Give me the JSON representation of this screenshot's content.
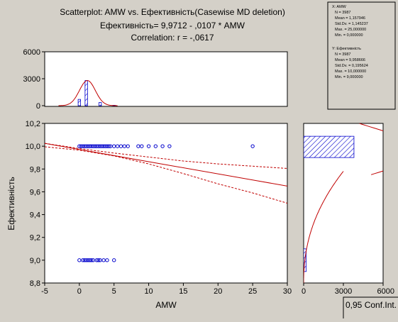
{
  "header": {
    "title": "Scatterplot: AMW     vs.   Ефективність(Casewise MD deletion)",
    "equation": "Ефективність= 9,9712 - ,0107  * AMW",
    "correlation": "Correlation: r = -,0617"
  },
  "stats_box": {
    "x_block": [
      "X:  AMW",
      "N  =  3987",
      "Mean  =  1,157946",
      "Std.Dv.  =  1,145237",
      "Max.  =  25,000000",
      "Min.  =  0,000000"
    ],
    "y_block": [
      "Y:  Ефективність",
      "N  =  3987",
      "Mean  =  9,958666",
      "Std.Dv.  =  0,195624",
      "Max.  =  10,000000",
      "Min.  =  9,000000"
    ]
  },
  "conf_label": "0,95 Conf.Int.",
  "colors": {
    "background": "#d4d0c8",
    "plot_bg": "#ffffff",
    "accent": "#c00000",
    "points": "#0000cc"
  },
  "chart_data": [
    {
      "type": "scatter",
      "name": "main",
      "xlabel": "AMW",
      "ylabel": "Ефективність",
      "xlim": [
        -5,
        30
      ],
      "ylim": [
        8.8,
        10.2
      ],
      "xticks": [
        "-5",
        "0",
        "5",
        "10",
        "15",
        "20",
        "25",
        "30"
      ],
      "yticks": [
        "8,8",
        "9,0",
        "9,2",
        "9,4",
        "9,6",
        "9,8",
        "10,0",
        "10,2"
      ],
      "points": [
        {
          "x": 0,
          "y": 10
        },
        {
          "x": 0.25,
          "y": 10
        },
        {
          "x": 0.5,
          "y": 10
        },
        {
          "x": 0.75,
          "y": 10
        },
        {
          "x": 1,
          "y": 10
        },
        {
          "x": 1.25,
          "y": 10
        },
        {
          "x": 1.5,
          "y": 10
        },
        {
          "x": 1.75,
          "y": 10
        },
        {
          "x": 2,
          "y": 10
        },
        {
          "x": 2.25,
          "y": 10
        },
        {
          "x": 2.5,
          "y": 10
        },
        {
          "x": 2.75,
          "y": 10
        },
        {
          "x": 3,
          "y": 10
        },
        {
          "x": 3.25,
          "y": 10
        },
        {
          "x": 3.5,
          "y": 10
        },
        {
          "x": 3.75,
          "y": 10
        },
        {
          "x": 4,
          "y": 10
        },
        {
          "x": 4.25,
          "y": 10
        },
        {
          "x": 4.5,
          "y": 10
        },
        {
          "x": 5,
          "y": 10
        },
        {
          "x": 5.5,
          "y": 10
        },
        {
          "x": 6,
          "y": 10
        },
        {
          "x": 6.5,
          "y": 10
        },
        {
          "x": 7,
          "y": 10
        },
        {
          "x": 8.5,
          "y": 10
        },
        {
          "x": 9,
          "y": 10
        },
        {
          "x": 10,
          "y": 10
        },
        {
          "x": 11,
          "y": 10
        },
        {
          "x": 12,
          "y": 10
        },
        {
          "x": 13,
          "y": 10
        },
        {
          "x": 25,
          "y": 10
        },
        {
          "x": 0,
          "y": 9
        },
        {
          "x": 0.5,
          "y": 9
        },
        {
          "x": 0.75,
          "y": 9
        },
        {
          "x": 1,
          "y": 9
        },
        {
          "x": 1.25,
          "y": 9
        },
        {
          "x": 1.5,
          "y": 9
        },
        {
          "x": 1.75,
          "y": 9
        },
        {
          "x": 2,
          "y": 9
        },
        {
          "x": 2.5,
          "y": 9
        },
        {
          "x": 2.75,
          "y": 9
        },
        {
          "x": 3,
          "y": 9
        },
        {
          "x": 3.5,
          "y": 9
        },
        {
          "x": 4,
          "y": 9
        },
        {
          "x": 5,
          "y": 9
        }
      ],
      "regression": {
        "intercept": 9.9712,
        "slope": -0.0107
      },
      "conf_band_lines": {
        "upper": [
          [
            -5,
            10.025
          ],
          [
            0,
            9.98
          ],
          [
            5,
            9.94
          ],
          [
            10,
            9.905
          ],
          [
            15,
            9.87
          ],
          [
            20,
            9.845
          ],
          [
            25,
            9.825
          ],
          [
            30,
            9.805
          ]
        ],
        "lower": [
          [
            -5,
            9.995
          ],
          [
            0,
            9.965
          ],
          [
            5,
            9.915
          ],
          [
            10,
            9.845
          ],
          [
            15,
            9.76
          ],
          [
            20,
            9.67
          ],
          [
            25,
            9.59
          ],
          [
            30,
            9.5
          ]
        ]
      }
    },
    {
      "type": "bar",
      "name": "x_histogram",
      "ylim": [
        0,
        6000
      ],
      "yticks": [
        "0",
        "3000",
        "6000"
      ],
      "bins": [
        {
          "x": 0,
          "value": 700
        },
        {
          "x": 1,
          "value": 2800
        },
        {
          "x": 3,
          "value": 350
        },
        {
          "x": 5,
          "value": 40
        }
      ],
      "normal_curve": {
        "mean": 1.157946,
        "sd": 1.145237,
        "peak": 2800
      }
    },
    {
      "type": "bar",
      "name": "y_histogram",
      "xlim": [
        0,
        6000
      ],
      "xticks": [
        "0",
        "3000",
        "6000"
      ],
      "bins": [
        {
          "y": 10,
          "value": 3800
        },
        {
          "y": 9,
          "value": 190
        }
      ]
    }
  ]
}
